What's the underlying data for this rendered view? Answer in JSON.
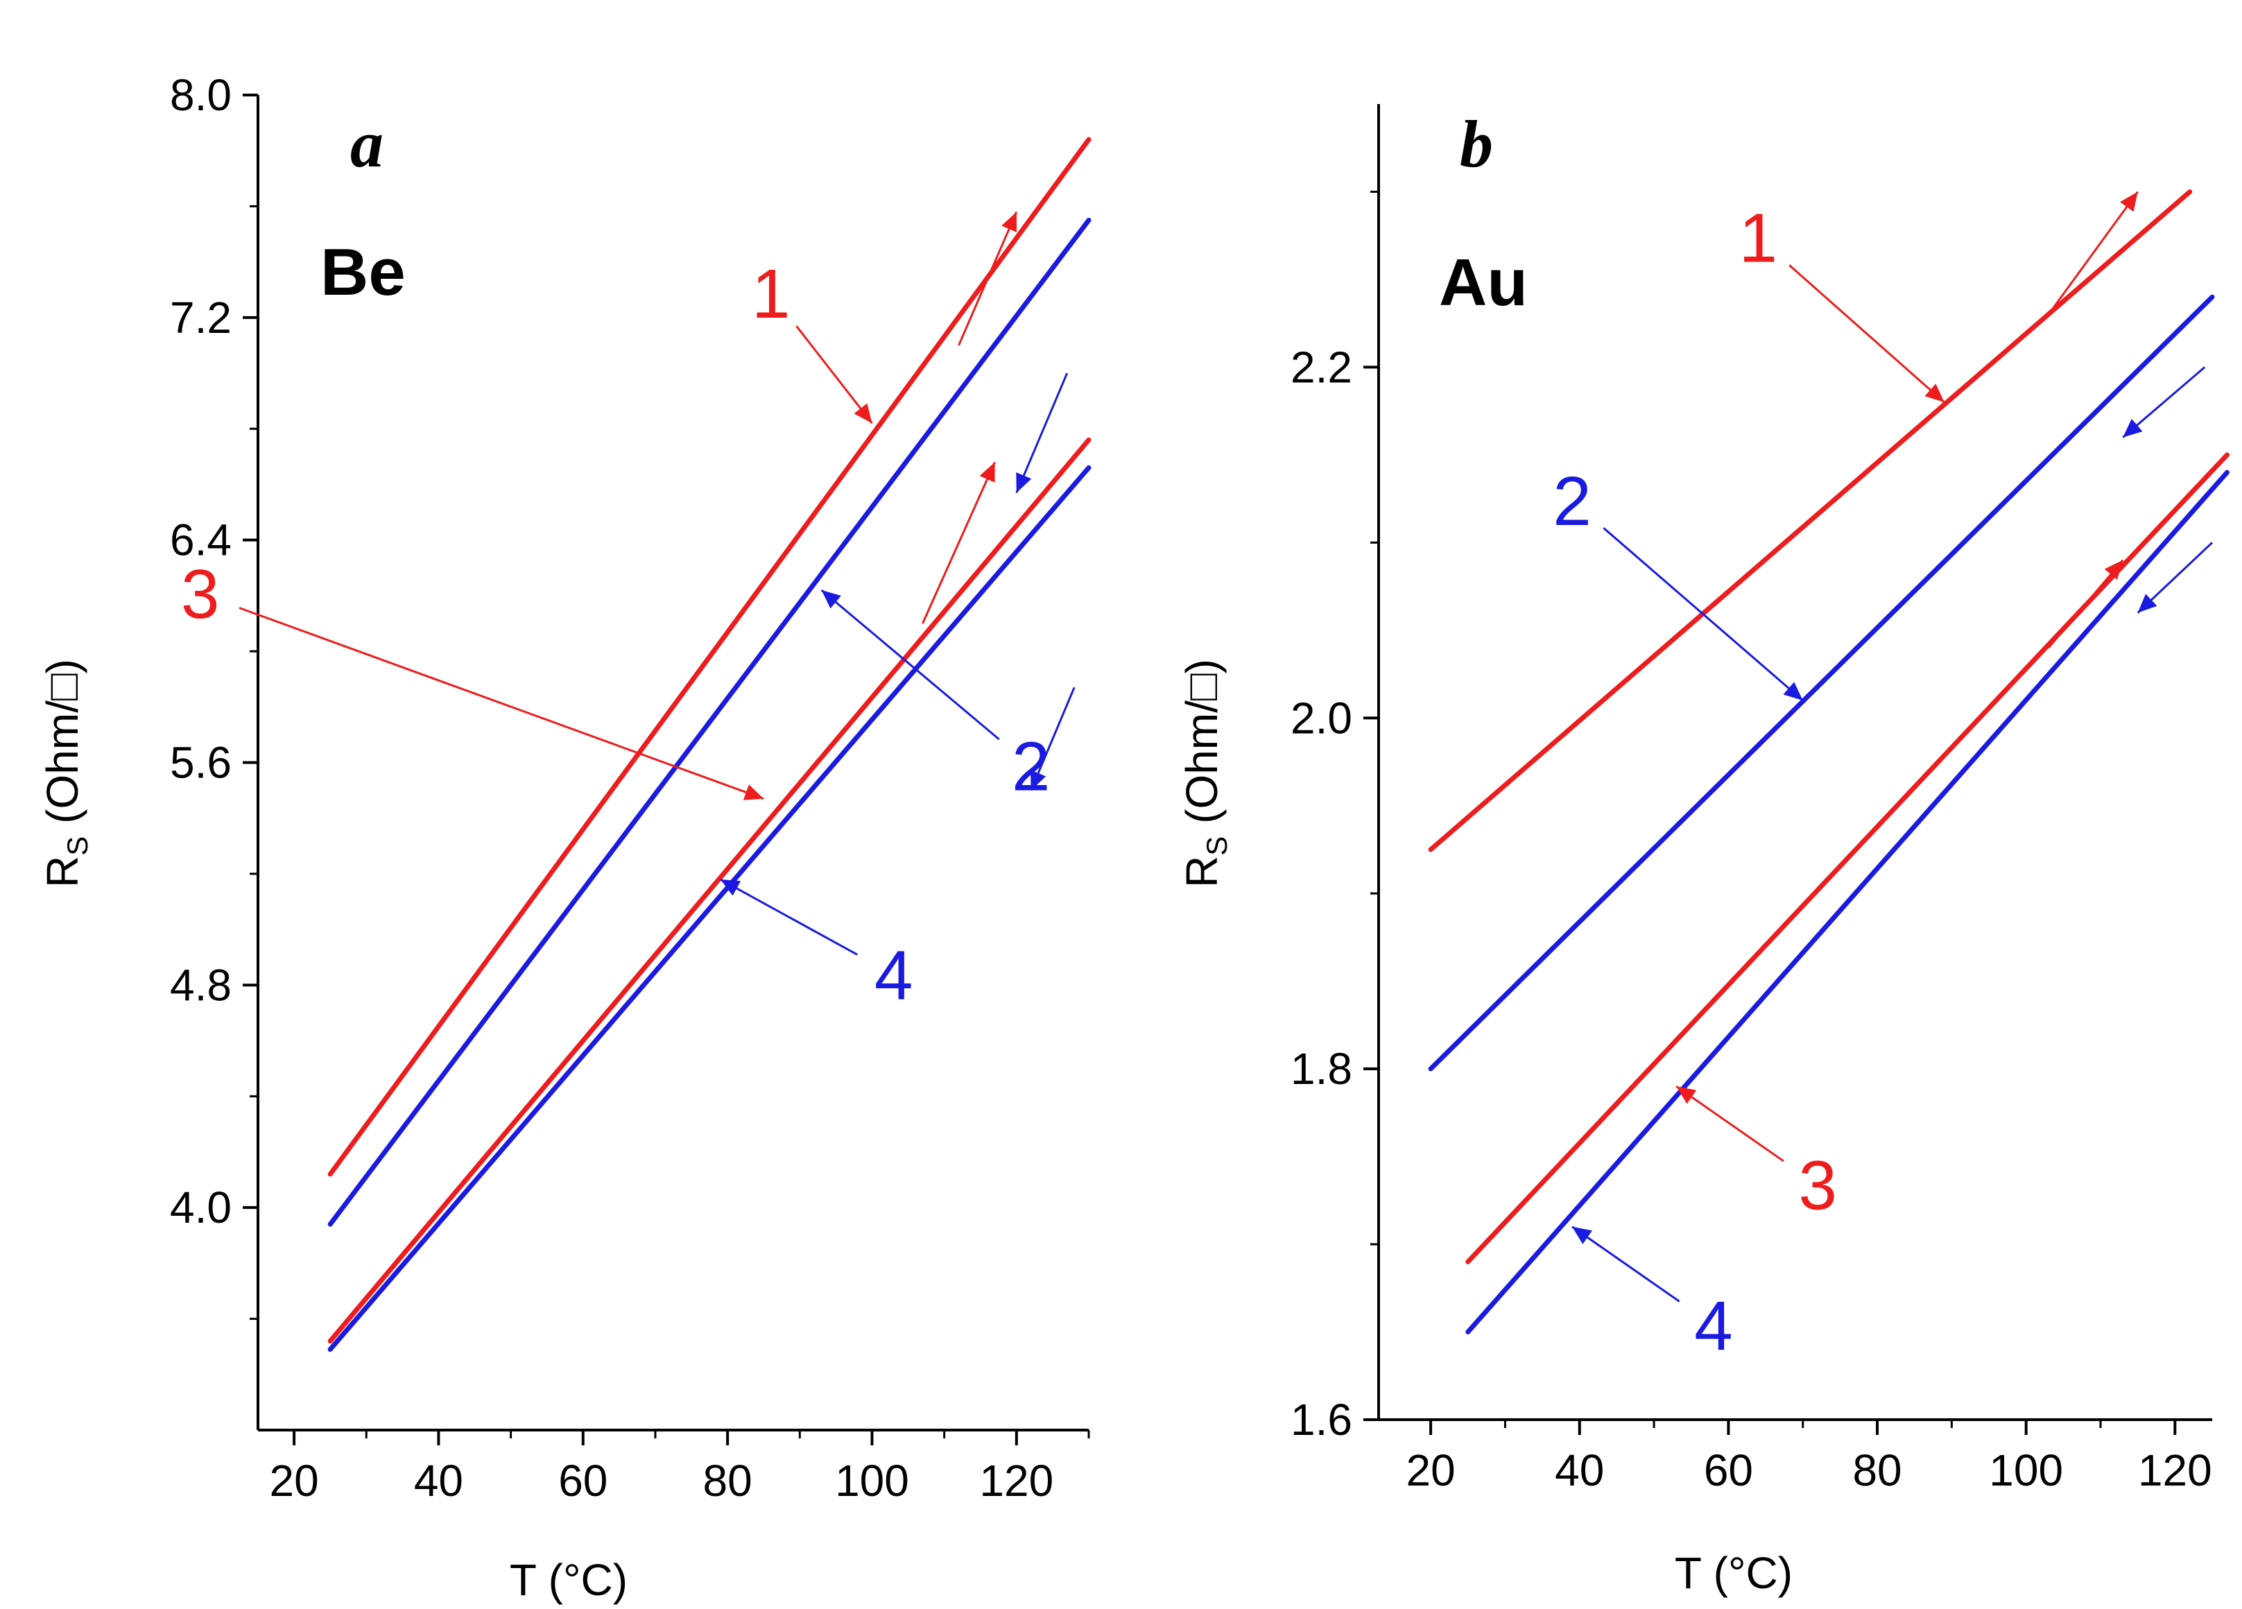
{
  "colors": {
    "red": "#ee1c1c",
    "blue": "#1a1ae0",
    "axis": "#000000"
  },
  "chart_data": [
    {
      "type": "line",
      "panel": "a",
      "element": "Be",
      "xlabel": "T (°C)",
      "ylabel": "R",
      "ylabel_sub": "S",
      "ylabel_unit": "(Ohm/□)",
      "xlim": [
        15,
        130
      ],
      "ylim": [
        3.2,
        8.0
      ],
      "xticks": [
        20,
        40,
        60,
        80,
        100,
        120
      ],
      "xtick_labels": [
        "20",
        "40",
        "60",
        "80",
        "100",
        "120"
      ],
      "yticks": [
        4.0,
        4.8,
        5.6,
        6.4,
        7.2,
        8.0
      ],
      "ytick_labels": [
        "4.0",
        "4.8",
        "5.6",
        "6.4",
        "7.2",
        "8.0"
      ],
      "series": [
        {
          "name": "1",
          "color": "red",
          "x": [
            25,
            130
          ],
          "y": [
            4.12,
            7.84
          ]
        },
        {
          "name": "2",
          "color": "blue",
          "x": [
            25,
            130
          ],
          "y": [
            3.94,
            7.55
          ]
        },
        {
          "name": "3",
          "color": "red",
          "x": [
            25,
            130
          ],
          "y": [
            3.52,
            6.76
          ]
        },
        {
          "name": "4",
          "color": "blue",
          "x": [
            25,
            130
          ],
          "y": [
            3.49,
            6.66
          ]
        }
      ],
      "annotations": [
        {
          "label": "1",
          "color": "red",
          "label_at": [
            86,
            7.2
          ],
          "tip": [
            100,
            6.82
          ]
        },
        {
          "label": "2",
          "color": "blue",
          "label_at": [
            122,
            5.5
          ],
          "tip": [
            93,
            6.22
          ]
        },
        {
          "label": "3",
          "color": "red",
          "label_at": [
            7,
            6.12
          ],
          "tip": [
            85,
            5.47
          ]
        },
        {
          "label": "4",
          "color": "blue",
          "label_at": [
            103,
            4.75
          ],
          "tip": [
            79,
            5.18
          ]
        }
      ],
      "direction_arrows": [
        {
          "series": "1",
          "dir": "up",
          "from": [
            112,
            7.1
          ],
          "to": [
            120,
            7.58
          ]
        },
        {
          "series": "2",
          "dir": "down",
          "from": [
            127,
            7.0
          ],
          "to": [
            120,
            6.57
          ]
        },
        {
          "series": "3",
          "dir": "up",
          "from": [
            107,
            6.1
          ],
          "to": [
            117,
            6.68
          ]
        },
        {
          "series": "4",
          "dir": "down",
          "from": [
            128,
            5.87
          ],
          "to": [
            122,
            5.5
          ]
        }
      ]
    },
    {
      "type": "line",
      "panel": "b",
      "element": "Au",
      "xlabel": "T (°C)",
      "ylabel": "R",
      "ylabel_sub": "S",
      "ylabel_unit": "(Ohm/□)",
      "xlim": [
        13,
        125
      ],
      "ylim": [
        1.6,
        2.35
      ],
      "xticks": [
        20,
        40,
        60,
        80,
        100,
        120
      ],
      "xtick_labels": [
        "20",
        "40",
        "60",
        "80",
        "100",
        "120"
      ],
      "yticks": [
        1.6,
        1.8,
        2.0,
        2.2
      ],
      "ytick_labels": [
        "1.6",
        "1.8",
        "2.0",
        "2.2"
      ],
      "series": [
        {
          "name": "1",
          "color": "red",
          "x": [
            20,
            122
          ],
          "y": [
            1.925,
            2.3
          ]
        },
        {
          "name": "2",
          "color": "blue",
          "x": [
            20,
            125
          ],
          "y": [
            1.8,
            2.24
          ]
        },
        {
          "name": "3",
          "color": "red",
          "x": [
            25,
            127
          ],
          "y": [
            1.69,
            2.15
          ]
        },
        {
          "name": "4",
          "color": "blue",
          "x": [
            25,
            127
          ],
          "y": [
            1.65,
            2.14
          ]
        }
      ],
      "annotations": [
        {
          "label": "1",
          "color": "red",
          "label_at": [
            64,
            2.26
          ],
          "tip": [
            89,
            2.18
          ]
        },
        {
          "label": "2",
          "color": "blue",
          "label_at": [
            39,
            2.11
          ],
          "tip": [
            70,
            2.01
          ]
        },
        {
          "label": "3",
          "color": "red",
          "label_at": [
            72,
            1.72
          ],
          "tip": [
            53,
            1.79
          ]
        },
        {
          "label": "4",
          "color": "blue",
          "label_at": [
            58,
            1.64
          ],
          "tip": [
            39,
            1.71
          ]
        }
      ],
      "direction_arrows": [
        {
          "series": "1",
          "dir": "up",
          "from": [
            103,
            2.23
          ],
          "to": [
            115,
            2.3
          ]
        },
        {
          "series": "2",
          "dir": "down",
          "from": [
            124,
            2.2
          ],
          "to": [
            113,
            2.16
          ]
        },
        {
          "series": "3",
          "dir": "up",
          "from": [
            103,
            2.04
          ],
          "to": [
            113,
            2.09
          ]
        },
        {
          "series": "4",
          "dir": "down",
          "from": [
            125,
            2.1
          ],
          "to": [
            115,
            2.06
          ]
        }
      ]
    }
  ]
}
